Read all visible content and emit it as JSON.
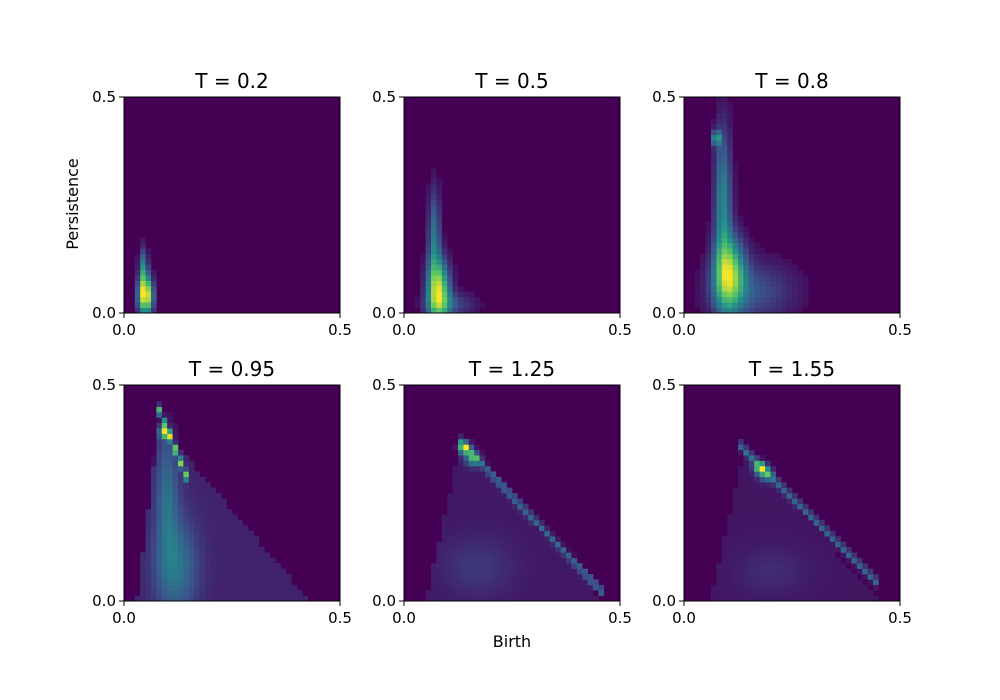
{
  "figure": {
    "xlabel": "Birth",
    "ylabel": "Persistence"
  },
  "colors": {
    "background": "#440154",
    "colormap": "viridis",
    "stops": [
      "#440154",
      "#3b528b",
      "#21918c",
      "#5ec962",
      "#fde725"
    ]
  },
  "chart_data": [
    {
      "type": "heatmap",
      "title": "T = 0.2",
      "xlim": [
        0,
        0.5
      ],
      "ylim": [
        0,
        0.5
      ],
      "xticks": [
        "0.0",
        "0.5"
      ],
      "yticks": [
        "0.0",
        "0.5"
      ],
      "grid": false,
      "bins": 40,
      "components": [
        {
          "kind": "blob",
          "cx": 0.05,
          "cy": 0.04,
          "sx": 0.012,
          "sy": 0.03,
          "amp": 1.0
        },
        {
          "kind": "blob",
          "cx": 0.045,
          "cy": 0.1,
          "sx": 0.007,
          "sy": 0.035,
          "amp": 0.45
        }
      ]
    },
    {
      "type": "heatmap",
      "title": "T = 0.5",
      "xlim": [
        0,
        0.5
      ],
      "ylim": [
        0,
        0.5
      ],
      "xticks": [
        "0.0",
        "0.5"
      ],
      "yticks": [
        "0.0",
        "0.5"
      ],
      "grid": false,
      "bins": 40,
      "components": [
        {
          "kind": "blob",
          "cx": 0.08,
          "cy": 0.05,
          "sx": 0.018,
          "sy": 0.05,
          "amp": 1.0
        },
        {
          "kind": "blob",
          "cx": 0.07,
          "cy": 0.17,
          "sx": 0.01,
          "sy": 0.08,
          "amp": 0.45
        },
        {
          "kind": "blob",
          "cx": 0.11,
          "cy": 0.02,
          "sx": 0.04,
          "sy": 0.02,
          "amp": 0.25
        }
      ]
    },
    {
      "type": "heatmap",
      "title": "T = 0.8",
      "xlim": [
        0,
        0.5
      ],
      "ylim": [
        0,
        0.5
      ],
      "xticks": [
        "0.0",
        "0.5"
      ],
      "yticks": [
        "0.0",
        "0.5"
      ],
      "grid": false,
      "bins": 40,
      "components": [
        {
          "kind": "blob",
          "cx": 0.105,
          "cy": 0.09,
          "sx": 0.025,
          "sy": 0.06,
          "amp": 0.95
        },
        {
          "kind": "blob",
          "cx": 0.09,
          "cy": 0.26,
          "sx": 0.014,
          "sy": 0.12,
          "amp": 0.55
        },
        {
          "kind": "blob",
          "cx": 0.075,
          "cy": 0.405,
          "sx": 0.006,
          "sy": 0.012,
          "amp": 0.75
        },
        {
          "kind": "blob",
          "cx": 0.16,
          "cy": 0.05,
          "sx": 0.07,
          "sy": 0.05,
          "amp": 0.3
        }
      ]
    },
    {
      "type": "heatmap",
      "title": "T = 0.95",
      "xlim": [
        0,
        0.5
      ],
      "ylim": [
        0,
        0.5
      ],
      "xticks": [
        "0.0",
        "0.5"
      ],
      "yticks": [
        "0.0",
        "0.5"
      ],
      "grid": false,
      "bins": 40,
      "components": [
        {
          "kind": "diag",
          "b0": 0.09,
          "b1": 0.14,
          "t0": 0.42,
          "t1": 0.3,
          "w": 0.008,
          "amp": 0.8
        },
        {
          "kind": "spot",
          "cx": 0.095,
          "cy": 0.39,
          "s": 0.008,
          "amp": 1.0
        },
        {
          "kind": "tri",
          "x0": 0.03,
          "x1": 0.43,
          "apexX": 0.08,
          "apexY": 0.41,
          "amp": 0.12
        },
        {
          "kind": "blob",
          "cx": 0.12,
          "cy": 0.08,
          "sx": 0.035,
          "sy": 0.08,
          "amp": 0.35
        },
        {
          "kind": "blob",
          "cx": 0.1,
          "cy": 0.25,
          "sx": 0.018,
          "sy": 0.1,
          "amp": 0.3
        }
      ]
    },
    {
      "type": "heatmap",
      "title": "T = 1.25",
      "xlim": [
        0,
        0.5
      ],
      "ylim": [
        0,
        0.5
      ],
      "xticks": [
        "0.0",
        "0.5"
      ],
      "yticks": [
        "0.0",
        "0.5"
      ],
      "grid": false,
      "bins": 40,
      "components": [
        {
          "kind": "diag",
          "b0": 0.13,
          "b1": 0.45,
          "t0": 0.37,
          "t1": 0.03,
          "w": 0.008,
          "amp": 0.5
        },
        {
          "kind": "spot",
          "cx": 0.14,
          "cy": 0.355,
          "s": 0.01,
          "amp": 1.0
        },
        {
          "kind": "spot",
          "cx": 0.16,
          "cy": 0.33,
          "s": 0.012,
          "amp": 0.7
        },
        {
          "kind": "tri",
          "x0": 0.05,
          "x1": 0.46,
          "apexX": 0.13,
          "apexY": 0.36,
          "amp": 0.1
        },
        {
          "kind": "blob",
          "cx": 0.17,
          "cy": 0.08,
          "sx": 0.06,
          "sy": 0.05,
          "amp": 0.15
        }
      ]
    },
    {
      "type": "heatmap",
      "title": "T = 1.55",
      "xlim": [
        0,
        0.5
      ],
      "ylim": [
        0,
        0.5
      ],
      "xticks": [
        "0.0",
        "0.5"
      ],
      "yticks": [
        "0.0",
        "0.5"
      ],
      "grid": false,
      "bins": 40,
      "components": [
        {
          "kind": "diag",
          "b0": 0.14,
          "b1": 0.44,
          "t0": 0.35,
          "t1": 0.05,
          "w": 0.008,
          "amp": 0.55
        },
        {
          "kind": "spot",
          "cx": 0.175,
          "cy": 0.31,
          "s": 0.01,
          "amp": 1.0
        },
        {
          "kind": "spot",
          "cx": 0.19,
          "cy": 0.295,
          "s": 0.012,
          "amp": 0.7
        },
        {
          "kind": "tri",
          "x0": 0.06,
          "x1": 0.45,
          "apexX": 0.14,
          "apexY": 0.35,
          "amp": 0.1
        },
        {
          "kind": "blob",
          "cx": 0.2,
          "cy": 0.07,
          "sx": 0.06,
          "sy": 0.04,
          "amp": 0.12
        }
      ]
    }
  ]
}
